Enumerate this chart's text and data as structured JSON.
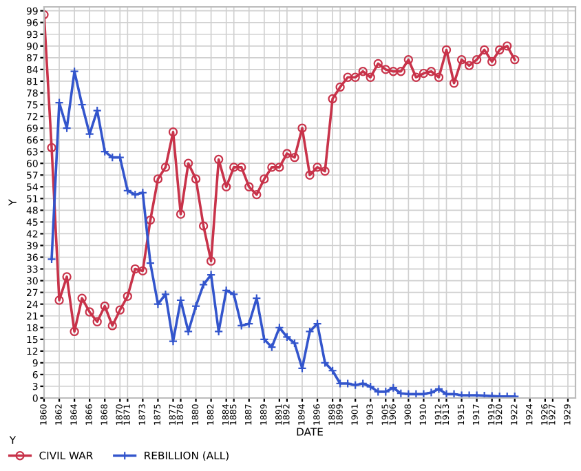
{
  "chart_data": {
    "type": "line",
    "xlabel": "DATE",
    "ylabel": "Y",
    "legend_title": "Y",
    "xlim": [
      1860,
      1930
    ],
    "xticks": [
      1860,
      1862,
      1864,
      1866,
      1868,
      1870,
      1871,
      1873,
      1875,
      1877,
      1878,
      1880,
      1882,
      1884,
      1885,
      1887,
      1889,
      1891,
      1892,
      1894,
      1896,
      1898,
      1899,
      1901,
      1903,
      1905,
      1906,
      1908,
      1910,
      1912,
      1913,
      1915,
      1917,
      1919,
      1920,
      1922,
      1924,
      1926,
      1927,
      1929
    ],
    "ylim": [
      0,
      100
    ],
    "yticks": [
      0,
      3,
      6,
      9,
      12,
      15,
      18,
      21,
      24,
      27,
      30,
      33,
      36,
      39,
      42,
      45,
      48,
      51,
      54,
      57,
      60,
      63,
      66,
      69,
      72,
      75,
      78,
      81,
      84,
      87,
      90,
      93,
      96,
      99
    ],
    "grid": true,
    "legend": "bottom",
    "series": [
      {
        "name": "CIVIL WAR",
        "color": "#c8334a",
        "marker": "circle",
        "x": [
          1860,
          1861,
          1862,
          1863,
          1864,
          1865,
          1866,
          1867,
          1868,
          1869,
          1870,
          1871,
          1872,
          1873,
          1874,
          1875,
          1876,
          1877,
          1878,
          1879,
          1880,
          1881,
          1882,
          1883,
          1884,
          1885,
          1886,
          1887,
          1888,
          1889,
          1890,
          1891,
          1892,
          1893,
          1894,
          1895,
          1896,
          1897,
          1898,
          1899,
          1900,
          1901,
          1902,
          1903,
          1904,
          1905,
          1906,
          1907,
          1908,
          1909,
          1910,
          1911,
          1912,
          1913,
          1914,
          1915,
          1916,
          1917,
          1918,
          1919,
          1920,
          1921,
          1922
        ],
        "values": [
          98,
          64,
          25,
          31,
          17,
          25.5,
          22,
          19.5,
          23.5,
          18.5,
          22.5,
          26,
          33,
          32.5,
          45.5,
          56,
          59,
          68,
          47,
          60,
          56,
          44,
          35,
          61,
          54,
          59,
          59,
          54,
          52,
          56,
          59,
          59,
          62.5,
          61.5,
          69,
          57,
          59,
          58,
          76.5,
          79.5,
          82,
          82,
          83.5,
          82,
          85.5,
          84,
          83.5,
          83.5,
          86.5,
          82,
          83,
          83.5,
          82,
          89,
          80.5,
          86.5,
          85,
          86.5,
          89,
          86,
          89,
          90,
          86.5
        ]
      },
      {
        "name": "REBILLION (ALL)",
        "color": "#3355cc",
        "marker": "cross",
        "x": [
          1861,
          1862,
          1863,
          1864,
          1865,
          1866,
          1867,
          1868,
          1869,
          1870,
          1871,
          1872,
          1873,
          1874,
          1875,
          1876,
          1877,
          1878,
          1879,
          1880,
          1881,
          1882,
          1883,
          1884,
          1885,
          1886,
          1887,
          1888,
          1889,
          1890,
          1891,
          1892,
          1893,
          1894,
          1895,
          1896,
          1897,
          1898,
          1899,
          1900,
          1901,
          1902,
          1903,
          1904,
          1905,
          1906,
          1907,
          1908,
          1909,
          1910,
          1911,
          1912,
          1913,
          1914,
          1915,
          1916,
          1917,
          1918,
          1919,
          1920,
          1921,
          1922
        ],
        "values": [
          35.5,
          75.5,
          69,
          83.5,
          75,
          67.5,
          73.5,
          63,
          61.5,
          61.5,
          53,
          52,
          52.5,
          34.5,
          24,
          26.5,
          14.5,
          25,
          17,
          23.5,
          29,
          31.5,
          17,
          27.5,
          26.5,
          18.5,
          19,
          25.5,
          15,
          13,
          18,
          15.6,
          14,
          7.6,
          17,
          19,
          9,
          7,
          3.7,
          3.7,
          3.3,
          3.7,
          2.9,
          1.6,
          1.6,
          2.6,
          1.2,
          1,
          1,
          1,
          1.4,
          2.3,
          1,
          1,
          0.7,
          0.7,
          0.7,
          0.6,
          0.5,
          0.4,
          0.4,
          0.4
        ]
      }
    ]
  }
}
